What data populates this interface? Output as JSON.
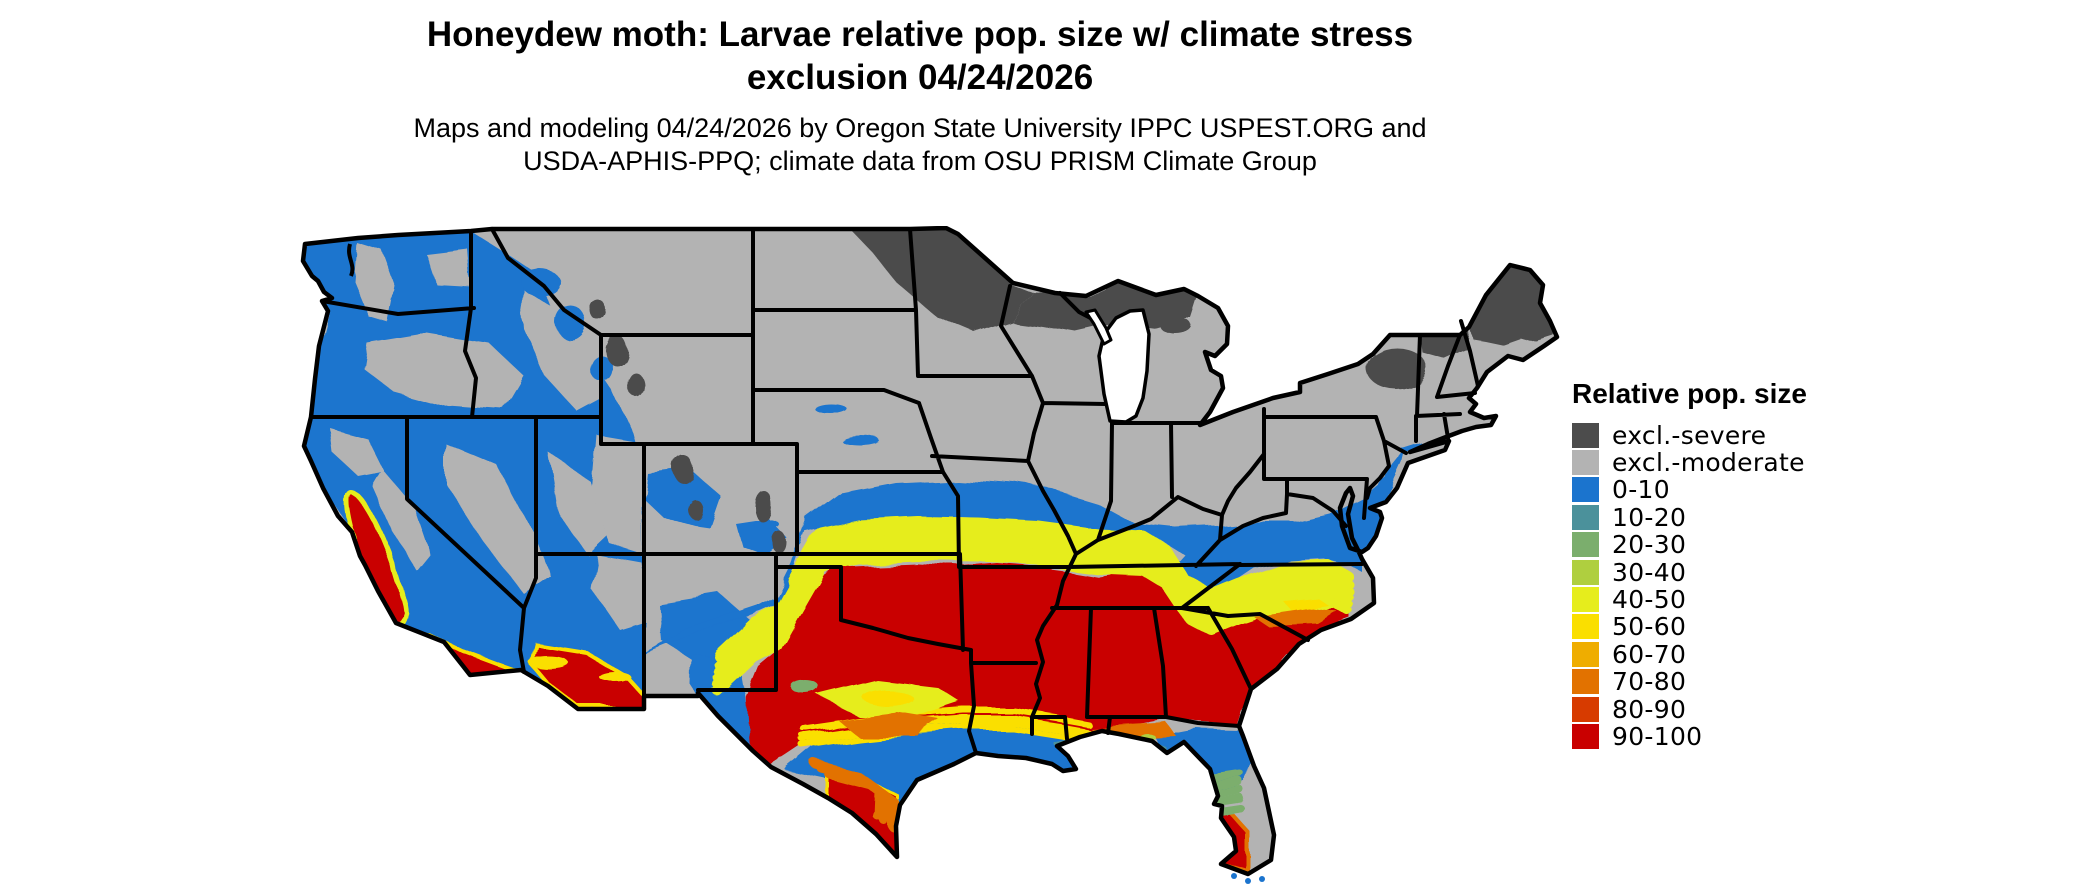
{
  "title": {
    "line1": "Honeydew moth: Larvae relative pop. size w/ climate stress",
    "line2": "exclusion 04/24/2026"
  },
  "subtitle": {
    "line1": "Maps and modeling 04/24/2026 by Oregon State University IPPC USPEST.ORG and",
    "line2": "USDA-APHIS-PPQ; climate data from OSU PRISM Climate Group"
  },
  "legend": {
    "title": "Relative pop. size",
    "items": [
      {
        "label": "excl.-severe",
        "color": "#4C4C4C"
      },
      {
        "label": "excl.-moderate",
        "color": "#B3B3B3"
      },
      {
        "label": "0-10",
        "color": "#1B74CE"
      },
      {
        "label": "10-20",
        "color": "#4B919B"
      },
      {
        "label": "20-30",
        "color": "#7BAE6D"
      },
      {
        "label": "30-40",
        "color": "#AFCF3F"
      },
      {
        "label": "40-50",
        "color": "#E6ED1C"
      },
      {
        "label": "50-60",
        "color": "#FADF00"
      },
      {
        "label": "60-70",
        "color": "#EFAD00"
      },
      {
        "label": "70-80",
        "color": "#E27200"
      },
      {
        "label": "80-90",
        "color": "#D73B00"
      },
      {
        "label": "90-100",
        "color": "#C90000"
      }
    ]
  },
  "map": {
    "region": "Contiguous United States",
    "kind": "raster suitability map",
    "quantity": "Larvae relative population size with climate stress exclusion"
  }
}
